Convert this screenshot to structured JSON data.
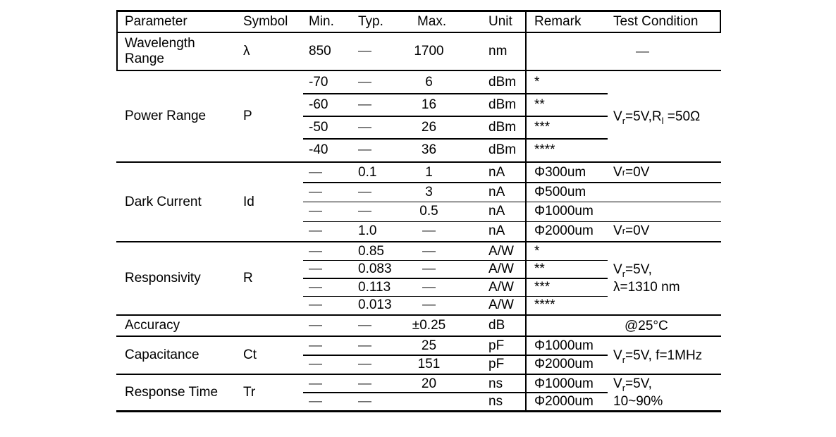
{
  "table": {
    "header": {
      "columns": [
        "Parameter",
        "Symbol",
        "Min.",
        "Typ.",
        "Max.",
        "Unit",
        "Remark",
        "Test Condition"
      ]
    },
    "groups": [
      {
        "parameter": "Wavelength Range",
        "symbol": "λ",
        "rows": [
          {
            "min": "850",
            "typ": "—",
            "max": "1700",
            "unit": "nm",
            "remark": ""
          }
        ],
        "test_span": [
          "—"
        ]
      },
      {
        "parameter": "Power Range",
        "symbol": "P",
        "rows": [
          {
            "min": "-70",
            "typ": "—",
            "max": "6",
            "unit": "dBm",
            "remark": "*"
          },
          {
            "min": "-60",
            "typ": "—",
            "max": "16",
            "unit": "dBm",
            "remark": "**"
          },
          {
            "min": "-50",
            "typ": "—",
            "max": "26",
            "unit": "dBm",
            "remark": "***"
          },
          {
            "min": "-40",
            "typ": "—",
            "max": "36",
            "unit": "dBm",
            "remark": "****"
          }
        ],
        "test_span": [
          "V{r}=5V,R{l} =50Ω"
        ]
      },
      {
        "parameter": "Dark Current",
        "symbol": "Id",
        "rows": [
          {
            "min": "—",
            "typ": "0.1",
            "max": "1",
            "unit": "nA",
            "remark": "Φ300um",
            "test": "V{r}=0V"
          },
          {
            "min": "—",
            "typ": "—",
            "max": "3",
            "unit": "nA",
            "remark": "Φ500um",
            "test": ""
          },
          {
            "min": "—",
            "typ": "—",
            "max": "0.5",
            "unit": "nA",
            "remark": "Φ1000um",
            "test": ""
          },
          {
            "min": "—",
            "typ": "1.0",
            "max": "—",
            "unit": "nA",
            "remark": "Φ2000um",
            "test": "V{r}=0V"
          }
        ]
      },
      {
        "parameter": "Responsivity",
        "symbol": "R",
        "rows": [
          {
            "min": "—",
            "typ": "0.85",
            "max": "—",
            "unit": "A/W",
            "remark": "*"
          },
          {
            "min": "—",
            "typ": "0.083",
            "max": "—",
            "unit": "A/W",
            "remark": "**"
          },
          {
            "min": "—",
            "typ": "0.113",
            "max": "—",
            "unit": "A/W",
            "remark": "***"
          },
          {
            "min": "—",
            "typ": "0.013",
            "max": "—",
            "unit": "A/W",
            "remark": "****"
          }
        ],
        "test_span": [
          "V{r}=5V,",
          "λ=1310 nm"
        ]
      },
      {
        "parameter": "Accuracy",
        "symbol": "",
        "rows": [
          {
            "min": "—",
            "typ": "—",
            "max": "±0.25",
            "unit": "dB",
            "remark": ""
          }
        ],
        "test_span": [
          "@25°C"
        ]
      },
      {
        "parameter": "Capacitance",
        "symbol": "Ct",
        "rows": [
          {
            "min": "—",
            "typ": "—",
            "max": "25",
            "unit": "pF",
            "remark": "Φ1000um"
          },
          {
            "min": "—",
            "typ": "—",
            "max": "151",
            "unit": "pF",
            "remark": "Φ2000um"
          }
        ],
        "test_span": [
          "V{r}=5V, f=1MHz"
        ]
      },
      {
        "parameter": "Response Time",
        "symbol": "Tr",
        "rows": [
          {
            "min": "—",
            "typ": "—",
            "max": "20",
            "unit": "ns",
            "remark": "Φ1000um"
          },
          {
            "min": "—",
            "typ": "—",
            "max": "",
            "unit": "ns",
            "remark": "Φ2000um"
          }
        ],
        "test_span": [
          "V{r}=5V,",
          "10~90%"
        ]
      }
    ]
  }
}
